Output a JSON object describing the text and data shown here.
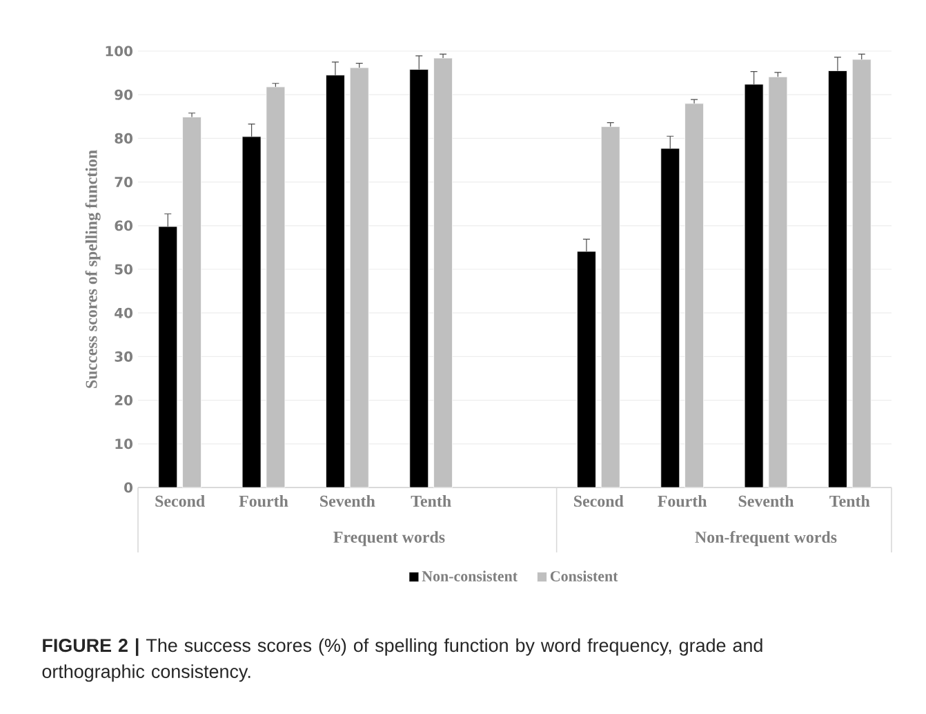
{
  "chart_data": {
    "type": "bar",
    "ylabel": "Success scores of spelling function",
    "categories": [
      "Second",
      "Fourth",
      "Seventh",
      "Tenth",
      null,
      "Second",
      "Fourth",
      "Seventh",
      "Tenth"
    ],
    "series": [
      {
        "name": "Non-consistent",
        "color": "#000000",
        "values": [
          59.8,
          80.4,
          94.5,
          95.8,
          null,
          54.1,
          77.7,
          92.4,
          95.5
        ],
        "errors": [
          [
            59.8,
            62.7
          ],
          [
            80.4,
            83.3
          ],
          [
            94.5,
            97.5
          ],
          [
            95.8,
            98.9
          ],
          null,
          [
            54.1,
            56.9
          ],
          [
            77.7,
            80.5
          ],
          [
            92.4,
            95.3
          ],
          [
            95.5,
            98.6
          ]
        ]
      },
      {
        "name": "Consistent",
        "color": "#bfbfbf",
        "values": [
          84.9,
          91.8,
          96.2,
          98.4,
          null,
          82.7,
          88.0,
          94.1,
          98.1
        ],
        "errors": [
          [
            84.9,
            85.8
          ],
          [
            91.8,
            92.6
          ],
          [
            96.2,
            97.2
          ],
          [
            98.4,
            99.3
          ],
          null,
          [
            82.7,
            83.6
          ],
          [
            88.0,
            88.9
          ],
          [
            94.1,
            95.1
          ],
          [
            98.1,
            99.3
          ]
        ]
      }
    ],
    "ylim": [
      0,
      100
    ],
    "yticks": [
      0,
      10,
      20,
      30,
      40,
      50,
      60,
      70,
      80,
      90,
      100
    ],
    "grid": "y",
    "legend": "bottom",
    "annotations": [
      "Frequent words",
      "Non-frequent words",
      "**FIGURE 2 |** The success scores (%) of spelling function by word frequency, grade and orthographic consistency."
    ]
  }
}
